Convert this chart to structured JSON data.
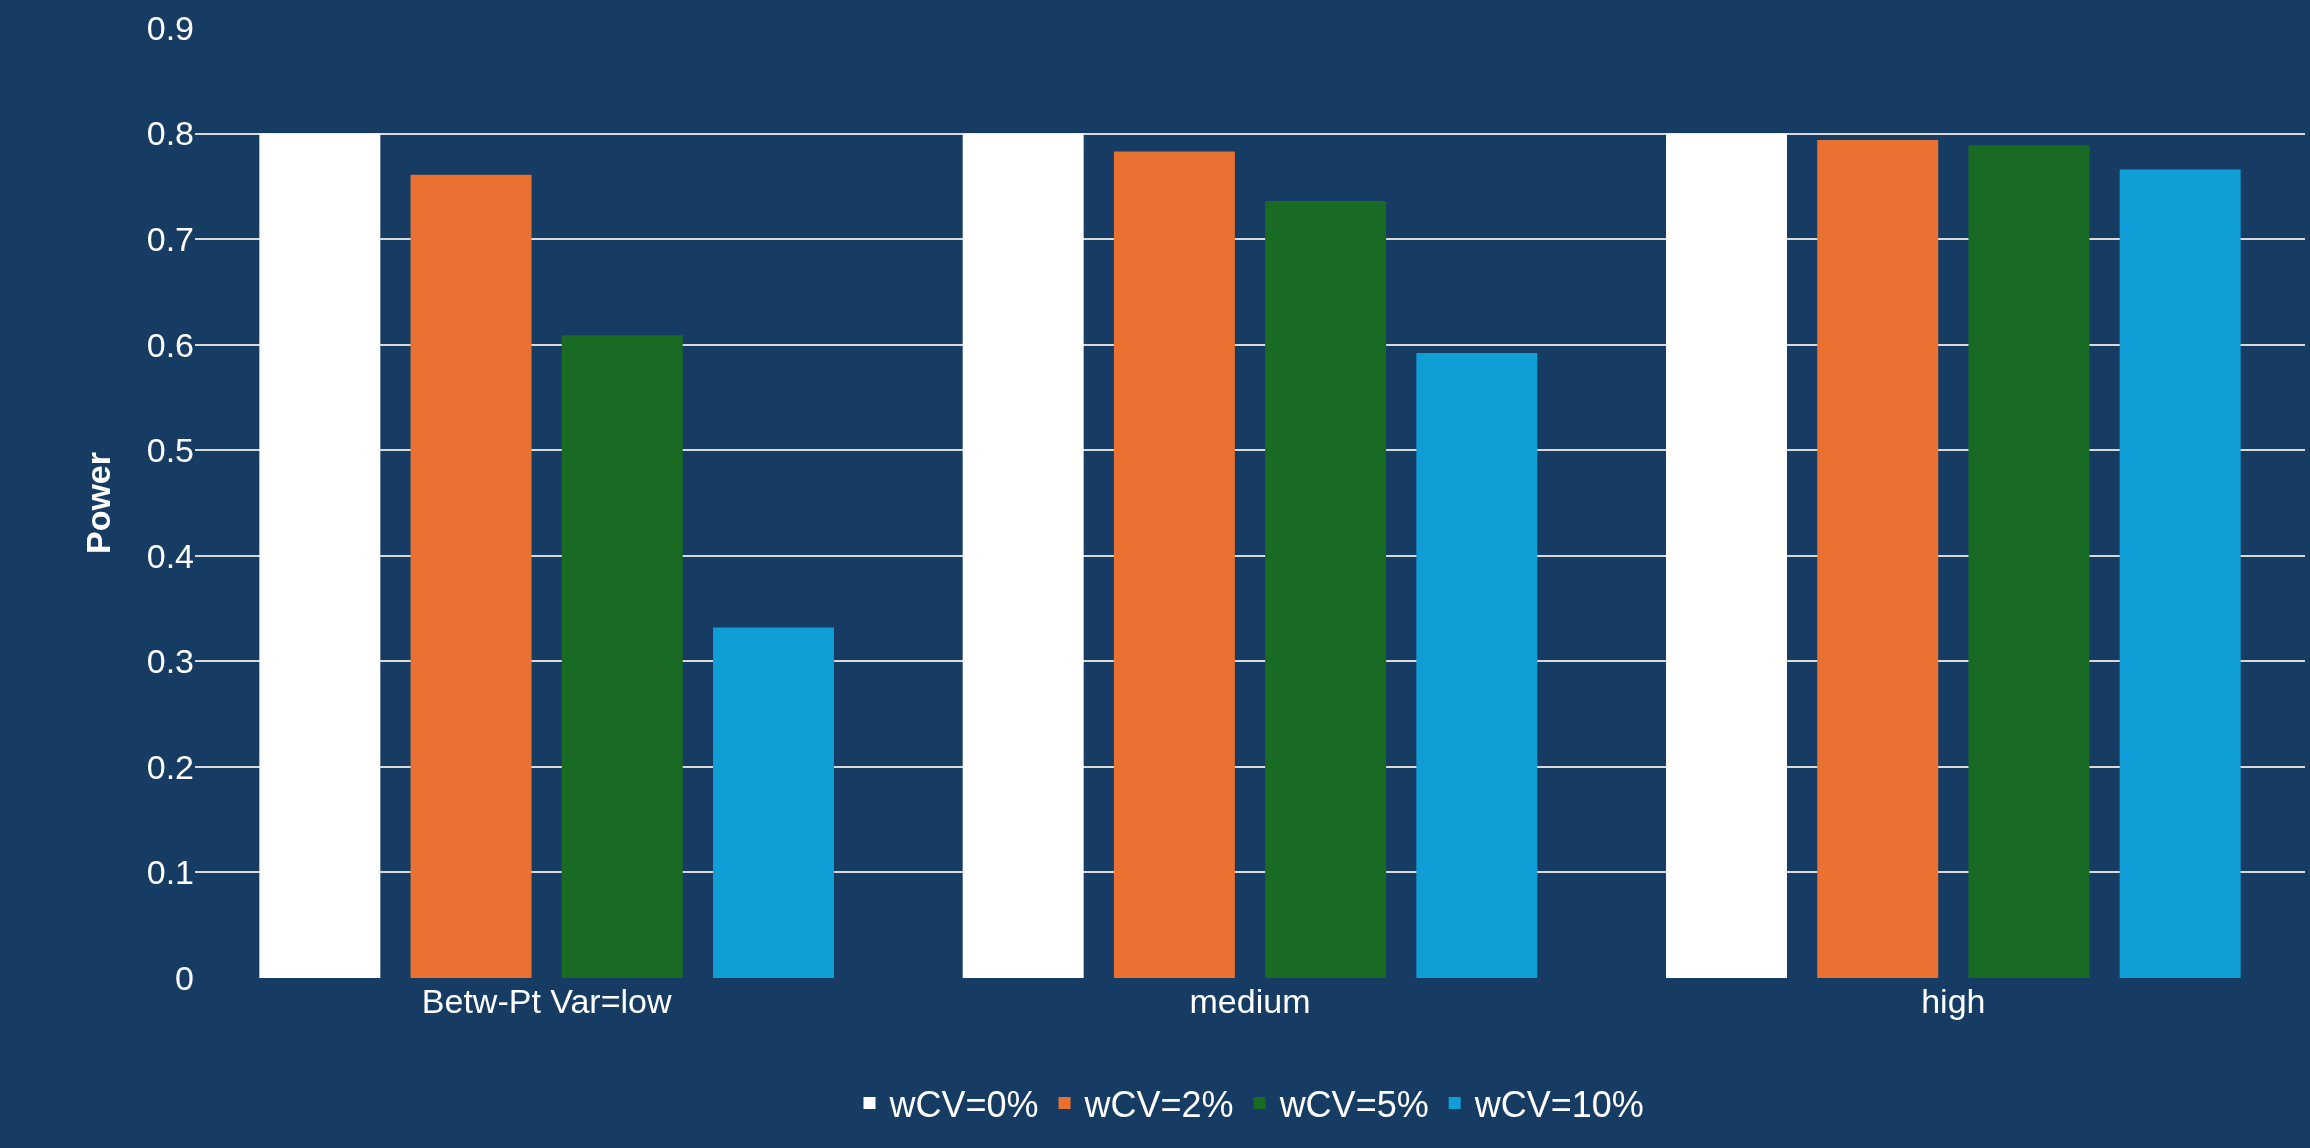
{
  "chart_data": {
    "type": "bar",
    "ylabel": "Power",
    "categories": [
      "Betw-Pt Var=low",
      "medium",
      "high"
    ],
    "series": [
      {
        "name": "wCV=0%",
        "color": "#ffffff",
        "values": [
          0.8,
          0.8,
          0.8
        ]
      },
      {
        "name": "wCV=2%",
        "color": "#e97132",
        "values": [
          0.761,
          0.783,
          0.794
        ]
      },
      {
        "name": "wCV=5%",
        "color": "#196b24",
        "values": [
          0.609,
          0.736,
          0.789
        ]
      },
      {
        "name": "wCV=10%",
        "color": "#0f9ed5",
        "values": [
          0.332,
          0.592,
          0.766
        ]
      }
    ],
    "ylim": [
      0,
      0.9
    ],
    "yticks": [
      0,
      0.1,
      0.2,
      0.3,
      0.4,
      0.5,
      0.6,
      0.7,
      0.8,
      0.9
    ],
    "grid": "y",
    "legend": "bottom"
  }
}
